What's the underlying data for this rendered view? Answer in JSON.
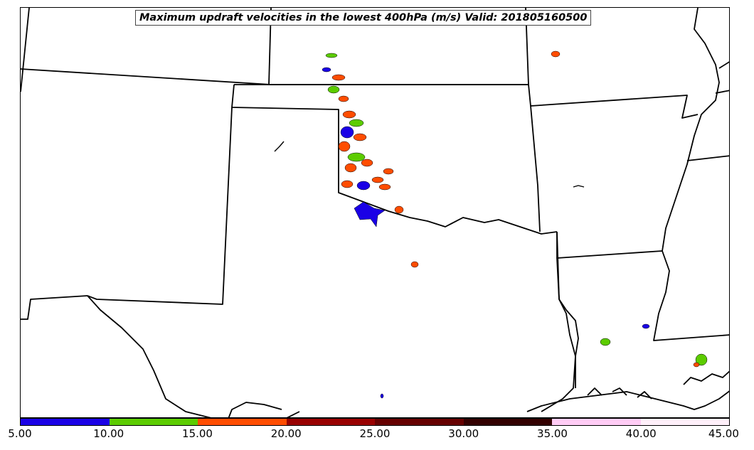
{
  "title": "Maximum updraft velocities in the lowest 400hPa (m/s) Valid: 201805160500",
  "colorbar": {
    "segments": [
      {
        "from": 5,
        "to": 10,
        "color": "#1a00e6"
      },
      {
        "from": 10,
        "to": 15,
        "color": "#5ccc00"
      },
      {
        "from": 15,
        "to": 20,
        "color": "#ff4d00"
      },
      {
        "from": 20,
        "to": 25,
        "color": "#990000"
      },
      {
        "from": 25,
        "to": 30,
        "color": "#660000"
      },
      {
        "from": 30,
        "to": 35,
        "color": "#330000"
      },
      {
        "from": 35,
        "to": 40,
        "color": "#ffccf5"
      },
      {
        "from": 40,
        "to": 45,
        "color": "#fff0fa"
      }
    ],
    "tick_labels": [
      "5.00",
      "10.00",
      "15.00",
      "20.00",
      "25.00",
      "30.00",
      "35.00",
      "40.00",
      "45.00"
    ]
  },
  "map": {
    "region": "Southern Plains and Lower Mississippi Valley",
    "field": "max updraft velocity (m/s)"
  }
}
